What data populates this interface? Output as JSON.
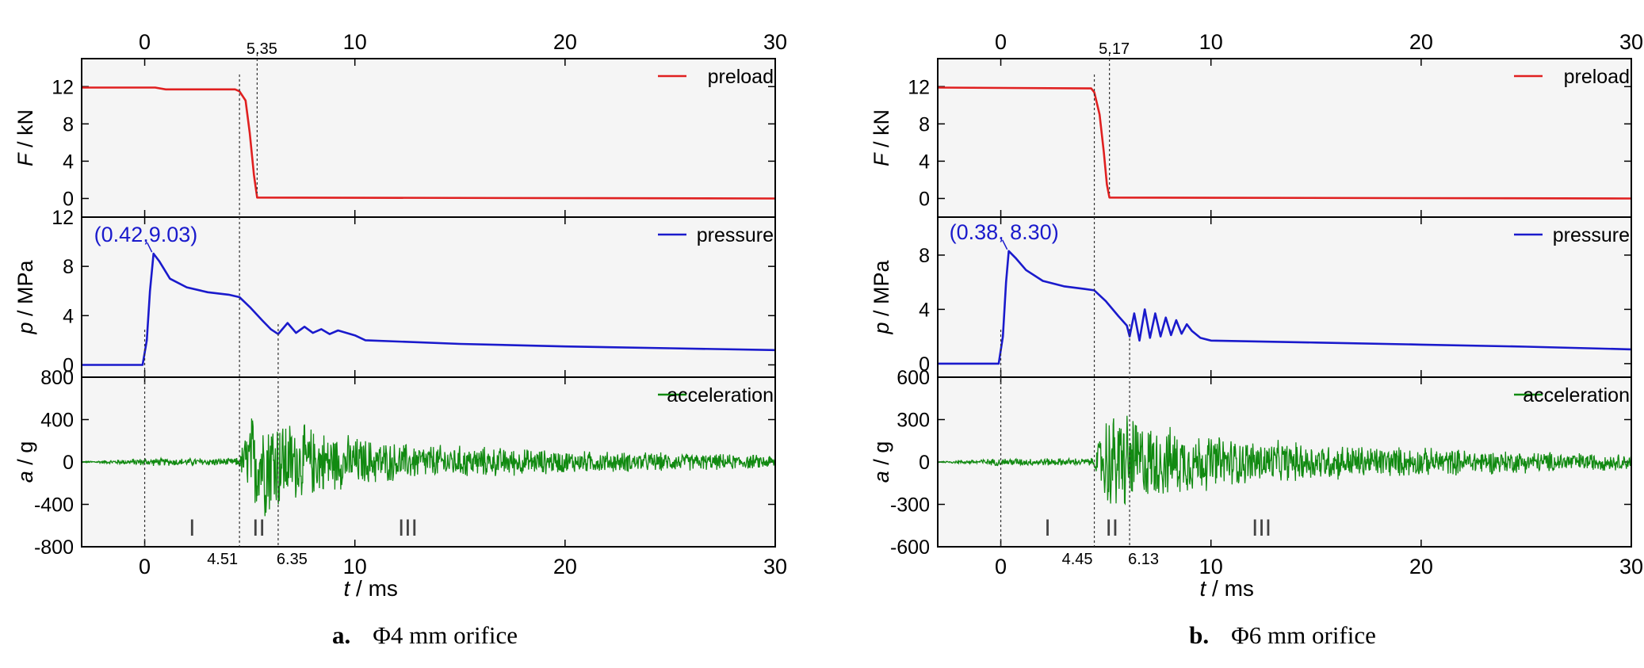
{
  "figure": {
    "panels": [
      {
        "id": "a",
        "caption_letter": "a.",
        "caption_text": "Φ4 mm orifice",
        "time_markers": {
          "top": "5.35",
          "bottom_left": "4.51",
          "bottom_right": "6.35"
        },
        "stage_labels": [
          "I",
          "II",
          "III"
        ],
        "xlabel_var": "t",
        "xlabel_unit": " / ms",
        "x_ticks": [
          0,
          10,
          20,
          30
        ]
      },
      {
        "id": "b",
        "caption_letter": "b.",
        "caption_text": "Φ6 mm orifice",
        "time_markers": {
          "top": "5.17",
          "bottom_left": "4.45",
          "bottom_right": "6.13"
        },
        "stage_labels": [
          "I",
          "II",
          "III"
        ],
        "xlabel_var": "t",
        "xlabel_unit": " / ms",
        "x_ticks": [
          0,
          10,
          20,
          30
        ]
      }
    ]
  },
  "chart_data": [
    {
      "panel": "a",
      "type": "line",
      "xlim": [
        -3,
        30
      ],
      "subplots": [
        {
          "name": "preload",
          "ylabel_var": "F",
          "ylabel_unit": " / kN",
          "ylim": [
            -2,
            15
          ],
          "yticks": [
            0,
            4,
            8,
            12
          ],
          "color": "#e02020",
          "legend": "preload",
          "x": [
            -3,
            0.5,
            1.0,
            4.3,
            4.51,
            4.8,
            5.0,
            5.2,
            5.35,
            30
          ],
          "y": [
            11.9,
            11.9,
            11.7,
            11.7,
            11.5,
            10.5,
            7.0,
            2.5,
            0.1,
            0.0
          ]
        },
        {
          "name": "pressure",
          "ylabel_var": "p",
          "ylabel_unit": " / MPa",
          "ylim": [
            -1,
            12
          ],
          "yticks": [
            0,
            4,
            8,
            12
          ],
          "color": "#1a1acc",
          "legend": "pressure",
          "annotation": "(0.42,9.03)",
          "peak": {
            "x": 0.42,
            "y": 9.03
          },
          "x": [
            -3,
            -0.1,
            0.1,
            0.25,
            0.42,
            0.7,
            1.2,
            2.0,
            3.0,
            4.0,
            4.51,
            5.0,
            5.6,
            6.0,
            6.35,
            6.8,
            7.2,
            7.6,
            8.0,
            8.4,
            8.8,
            9.2,
            9.6,
            10.0,
            10.5,
            15,
            20,
            25,
            30
          ],
          "y": [
            0.0,
            0.0,
            2.0,
            6.0,
            9.03,
            8.4,
            7.0,
            6.3,
            5.9,
            5.7,
            5.5,
            4.7,
            3.6,
            2.9,
            2.5,
            3.4,
            2.6,
            3.1,
            2.6,
            2.9,
            2.5,
            2.8,
            2.6,
            2.4,
            2.0,
            1.7,
            1.5,
            1.35,
            1.2
          ]
        },
        {
          "name": "acceleration",
          "ylabel_var": "a",
          "ylabel_unit": " / g",
          "ylim": [
            -800,
            800
          ],
          "yticks": [
            -800,
            -400,
            0,
            400,
            800
          ],
          "color": "#118a11",
          "legend": "acceleration",
          "noise_envelope": {
            "x": [
              -3,
              0,
              4.3,
              4.51,
              5.0,
              6.0,
              7.0,
              9.0,
              12,
              20,
              30
            ],
            "amplitude": [
              5,
              40,
              40,
              60,
              500,
              600,
              420,
              300,
              200,
              120,
              70
            ]
          }
        }
      ]
    },
    {
      "panel": "b",
      "type": "line",
      "xlim": [
        -3,
        30
      ],
      "subplots": [
        {
          "name": "preload",
          "ylabel_var": "F",
          "ylabel_unit": " / kN",
          "ylim": [
            -2,
            15
          ],
          "yticks": [
            0,
            4,
            8,
            12
          ],
          "color": "#e02020",
          "legend": "preload",
          "x": [
            -3,
            4.3,
            4.45,
            4.7,
            4.9,
            5.05,
            5.17,
            30
          ],
          "y": [
            11.9,
            11.8,
            11.4,
            9.0,
            5.0,
            1.5,
            0.1,
            0.0
          ]
        },
        {
          "name": "pressure",
          "ylabel_var": "p",
          "ylabel_unit": " / MPa",
          "ylim": [
            -1,
            10.8
          ],
          "yticks": [
            0,
            4,
            8
          ],
          "color": "#1a1acc",
          "legend": "pressure",
          "annotation": "(0.38, 8.30)",
          "peak": {
            "x": 0.38,
            "y": 8.3
          },
          "x": [
            -3,
            -0.1,
            0.1,
            0.25,
            0.38,
            0.7,
            1.2,
            2.0,
            3.0,
            4.0,
            4.45,
            5.0,
            5.6,
            6.0,
            6.13,
            6.35,
            6.6,
            6.85,
            7.1,
            7.35,
            7.6,
            7.85,
            8.1,
            8.35,
            8.6,
            8.85,
            9.1,
            9.5,
            10,
            15,
            20,
            25,
            30
          ],
          "y": [
            0.0,
            0.0,
            2.0,
            6.0,
            8.3,
            7.8,
            6.9,
            6.1,
            5.7,
            5.5,
            5.4,
            4.6,
            3.5,
            2.8,
            2.0,
            3.7,
            1.7,
            4.0,
            1.9,
            3.7,
            2.0,
            3.4,
            2.1,
            3.2,
            2.2,
            2.9,
            2.4,
            1.9,
            1.7,
            1.55,
            1.4,
            1.25,
            1.05
          ]
        },
        {
          "name": "acceleration",
          "ylabel_var": "a",
          "ylabel_unit": " / g",
          "ylim": [
            -600,
            600
          ],
          "yticks": [
            -600,
            -300,
            0,
            300,
            600
          ],
          "color": "#118a11",
          "legend": "acceleration",
          "noise_envelope": {
            "x": [
              -3,
              0,
              4.3,
              4.45,
              5.0,
              5.8,
              7.0,
              9.0,
              12,
              20,
              30
            ],
            "amplitude": [
              4,
              30,
              30,
              50,
              380,
              420,
              300,
              240,
              170,
              110,
              60
            ]
          }
        }
      ]
    }
  ]
}
